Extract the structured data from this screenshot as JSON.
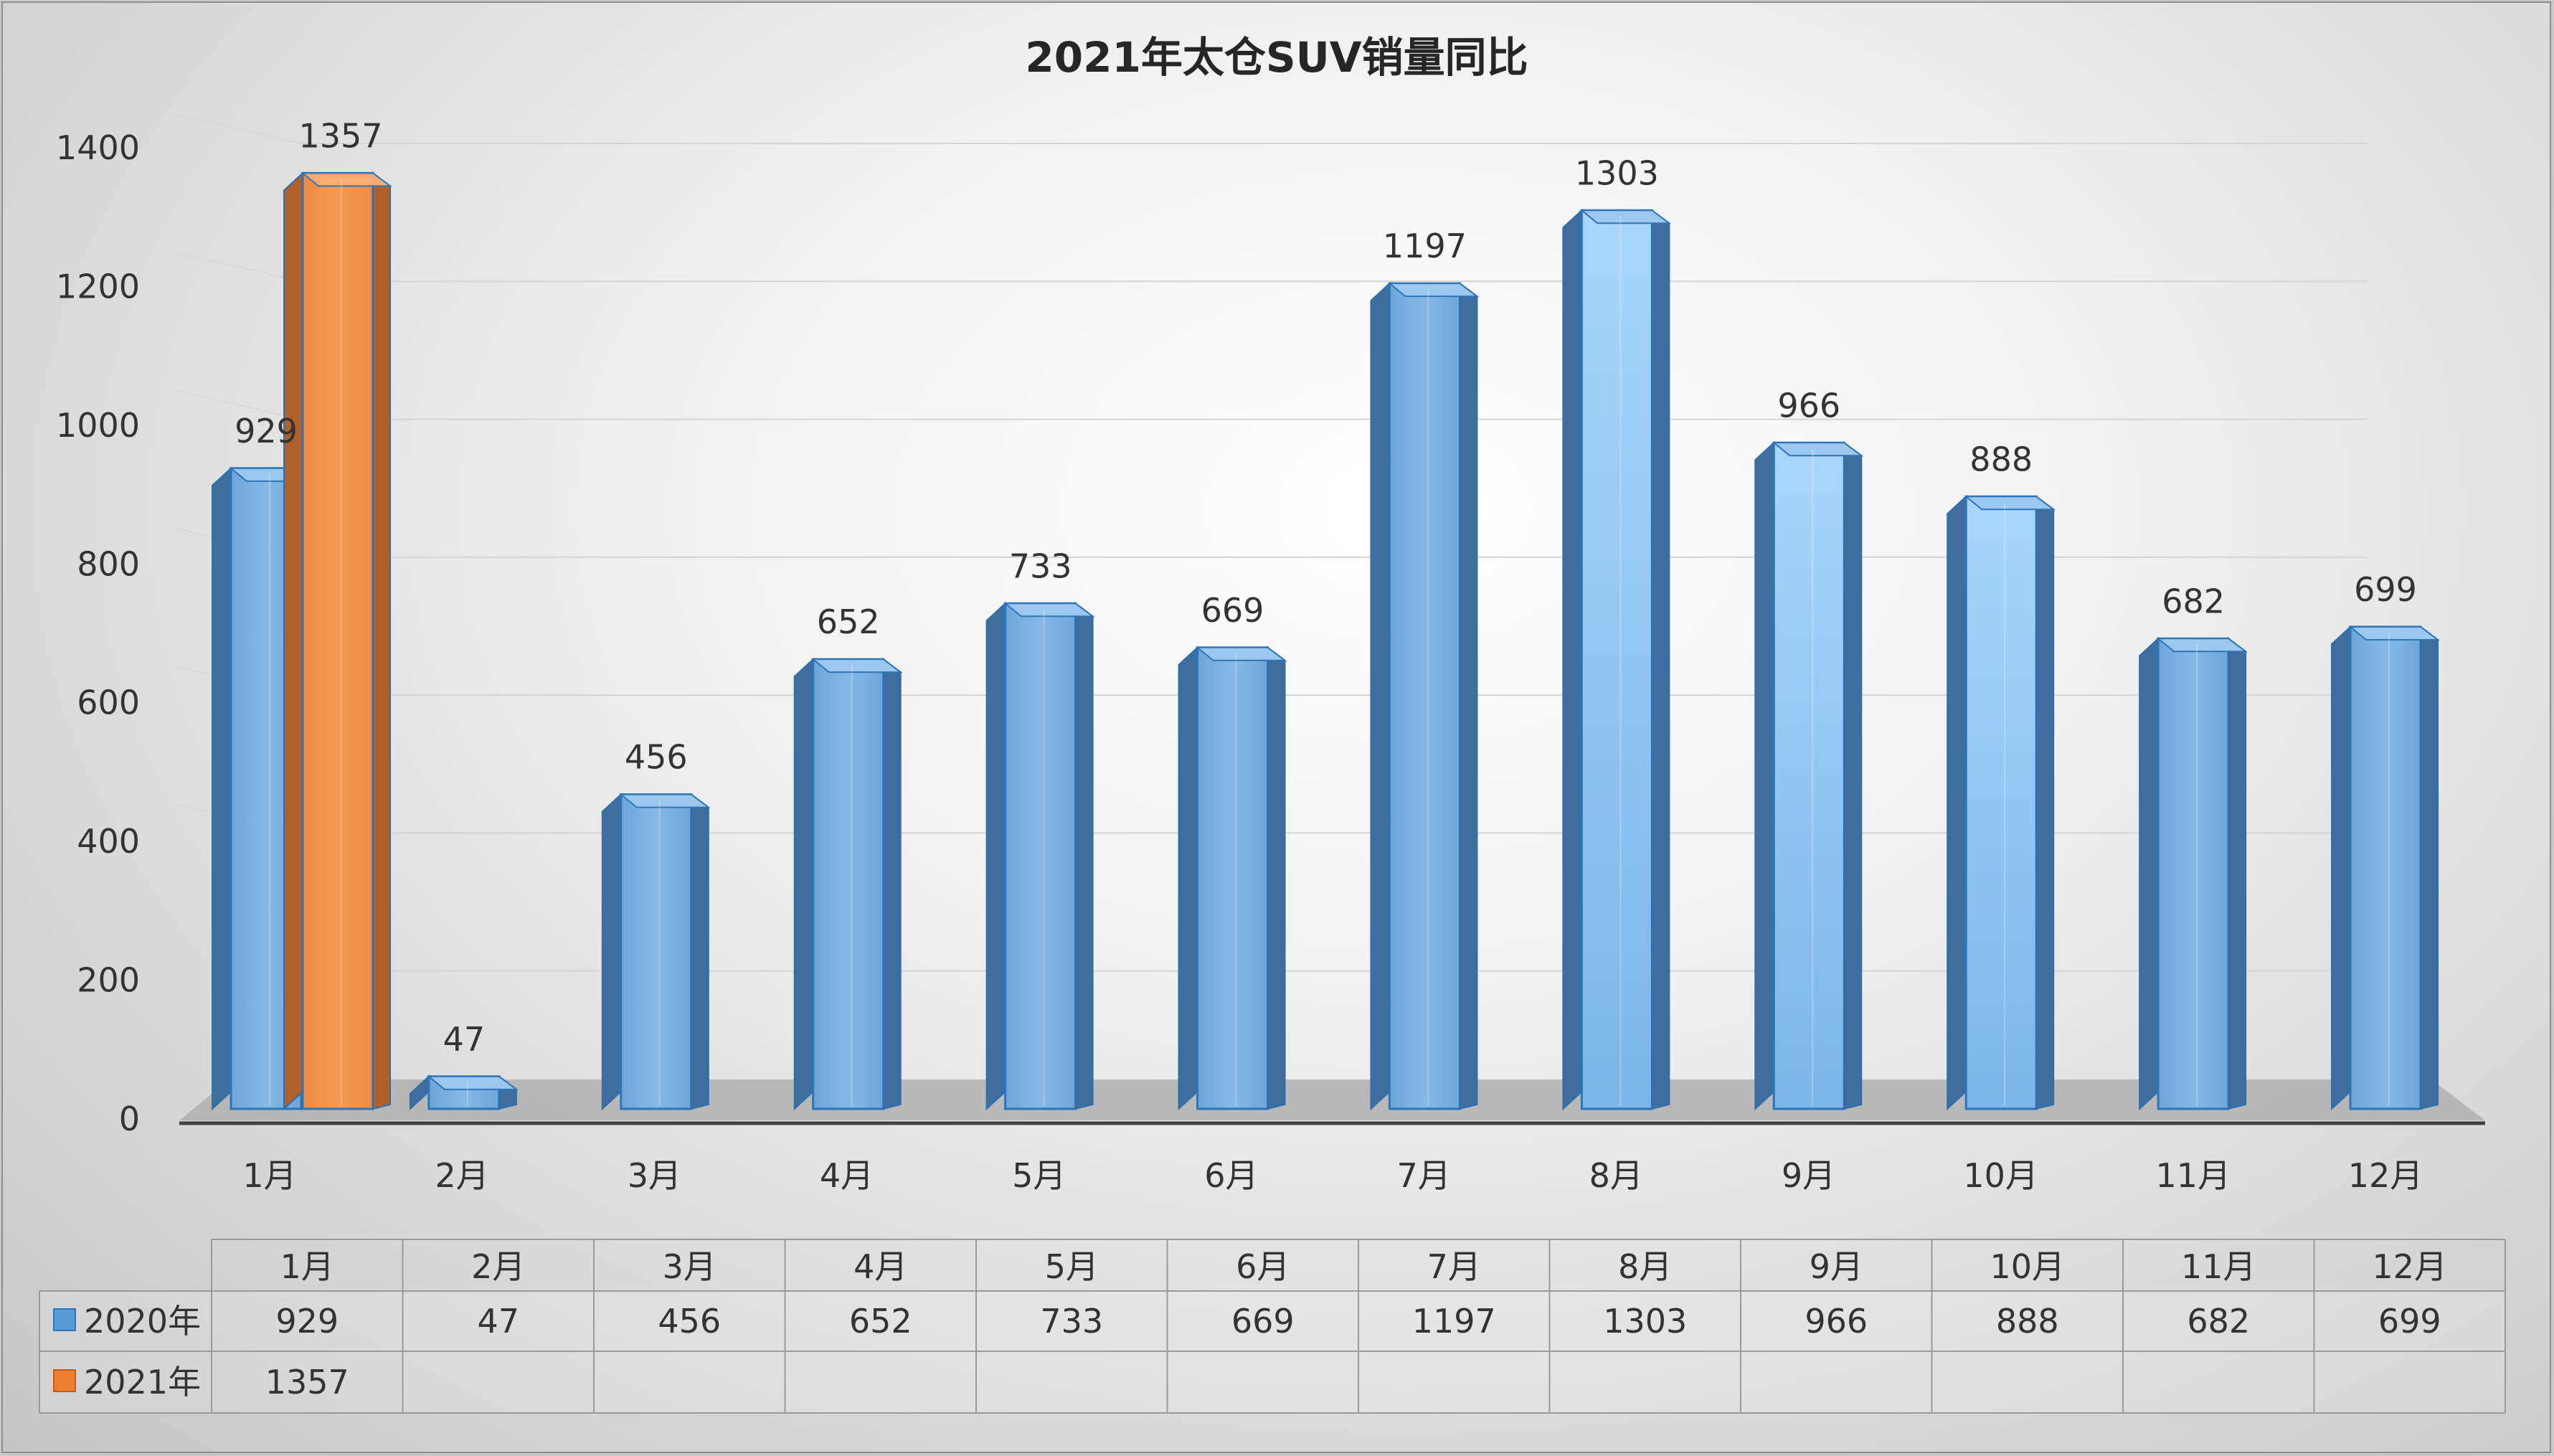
{
  "chart_data": {
    "type": "bar",
    "title": "2021年太仓SUV销量同比",
    "categories": [
      "1月",
      "2月",
      "3月",
      "4月",
      "5月",
      "6月",
      "7月",
      "8月",
      "9月",
      "10月",
      "11月",
      "12月"
    ],
    "series": [
      {
        "name": "2020年",
        "values": [
          929,
          47,
          456,
          652,
          733,
          669,
          1197,
          1303,
          966,
          888,
          682,
          699
        ],
        "color": "#5b9bd5"
      },
      {
        "name": "2021年",
        "values": [
          1357,
          null,
          null,
          null,
          null,
          null,
          null,
          null,
          null,
          null,
          null,
          null
        ],
        "color": "#ed7d31"
      }
    ],
    "y_ticks": [
      "0",
      "200",
      "400",
      "600",
      "800",
      "1000",
      "1200",
      "1400"
    ],
    "ylim": [
      0,
      1400
    ],
    "grid": true,
    "legend": "data-table-below",
    "style": "3d-column"
  }
}
